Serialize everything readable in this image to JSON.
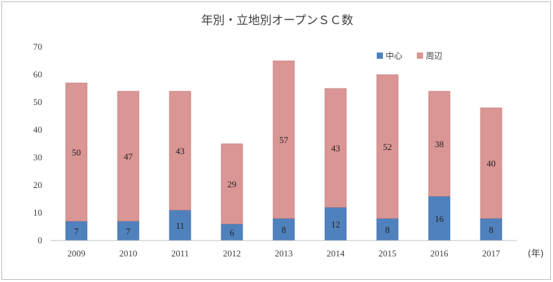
{
  "chart_data": {
    "type": "bar",
    "stacked": true,
    "title": "年別・立地別オープンＳＣ数",
    "categories": [
      "2009",
      "2010",
      "2011",
      "2012",
      "2013",
      "2014",
      "2015",
      "2016",
      "2017"
    ],
    "x_unit": "(年)",
    "ylim": [
      0,
      70
    ],
    "yticks": [
      0,
      10,
      20,
      30,
      40,
      50,
      60,
      70
    ],
    "grid": false,
    "legend_position": "top-right",
    "series": [
      {
        "name": "中心",
        "color": "#4f81bd",
        "values": [
          7,
          7,
          11,
          6,
          8,
          12,
          8,
          16,
          8
        ]
      },
      {
        "name": "周辺",
        "color": "#da9694",
        "values": [
          50,
          47,
          43,
          29,
          57,
          43,
          52,
          38,
          40
        ]
      }
    ]
  }
}
